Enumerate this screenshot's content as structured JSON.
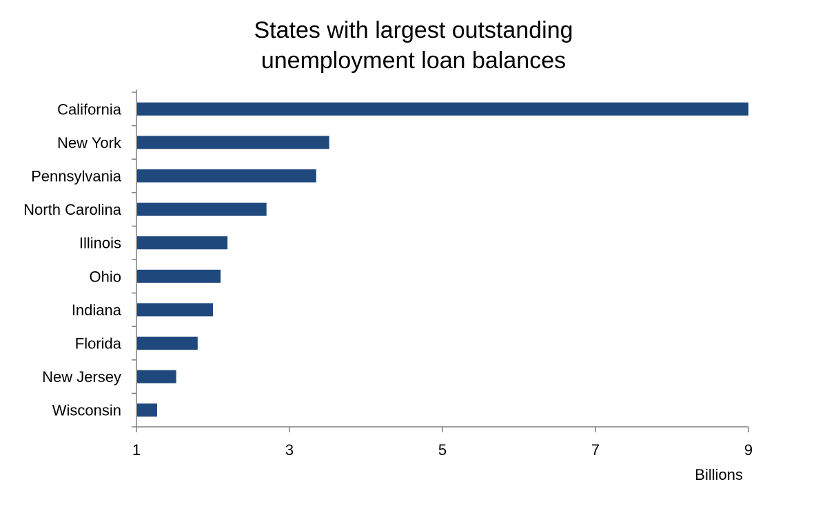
{
  "chart_data": {
    "type": "bar",
    "orientation": "horizontal",
    "title_lines": [
      "States with largest outstanding",
      "unemployment loan balances"
    ],
    "categories": [
      "California",
      "New York",
      "Pennsylvania",
      "North Carolina",
      "Illinois",
      "Ohio",
      "Indiana",
      "Florida",
      "New Jersey",
      "Wisconsin"
    ],
    "values": [
      9.0,
      3.52,
      3.35,
      2.7,
      2.19,
      2.1,
      2.0,
      1.8,
      1.52,
      1.27
    ],
    "xlim": [
      1,
      9
    ],
    "xticks": [
      1,
      3,
      5,
      7,
      9
    ],
    "xlabel": "Billions",
    "ylabel": "",
    "grid": false,
    "bar_color": "#1f497d",
    "axis_color": "#7f7f7f"
  }
}
